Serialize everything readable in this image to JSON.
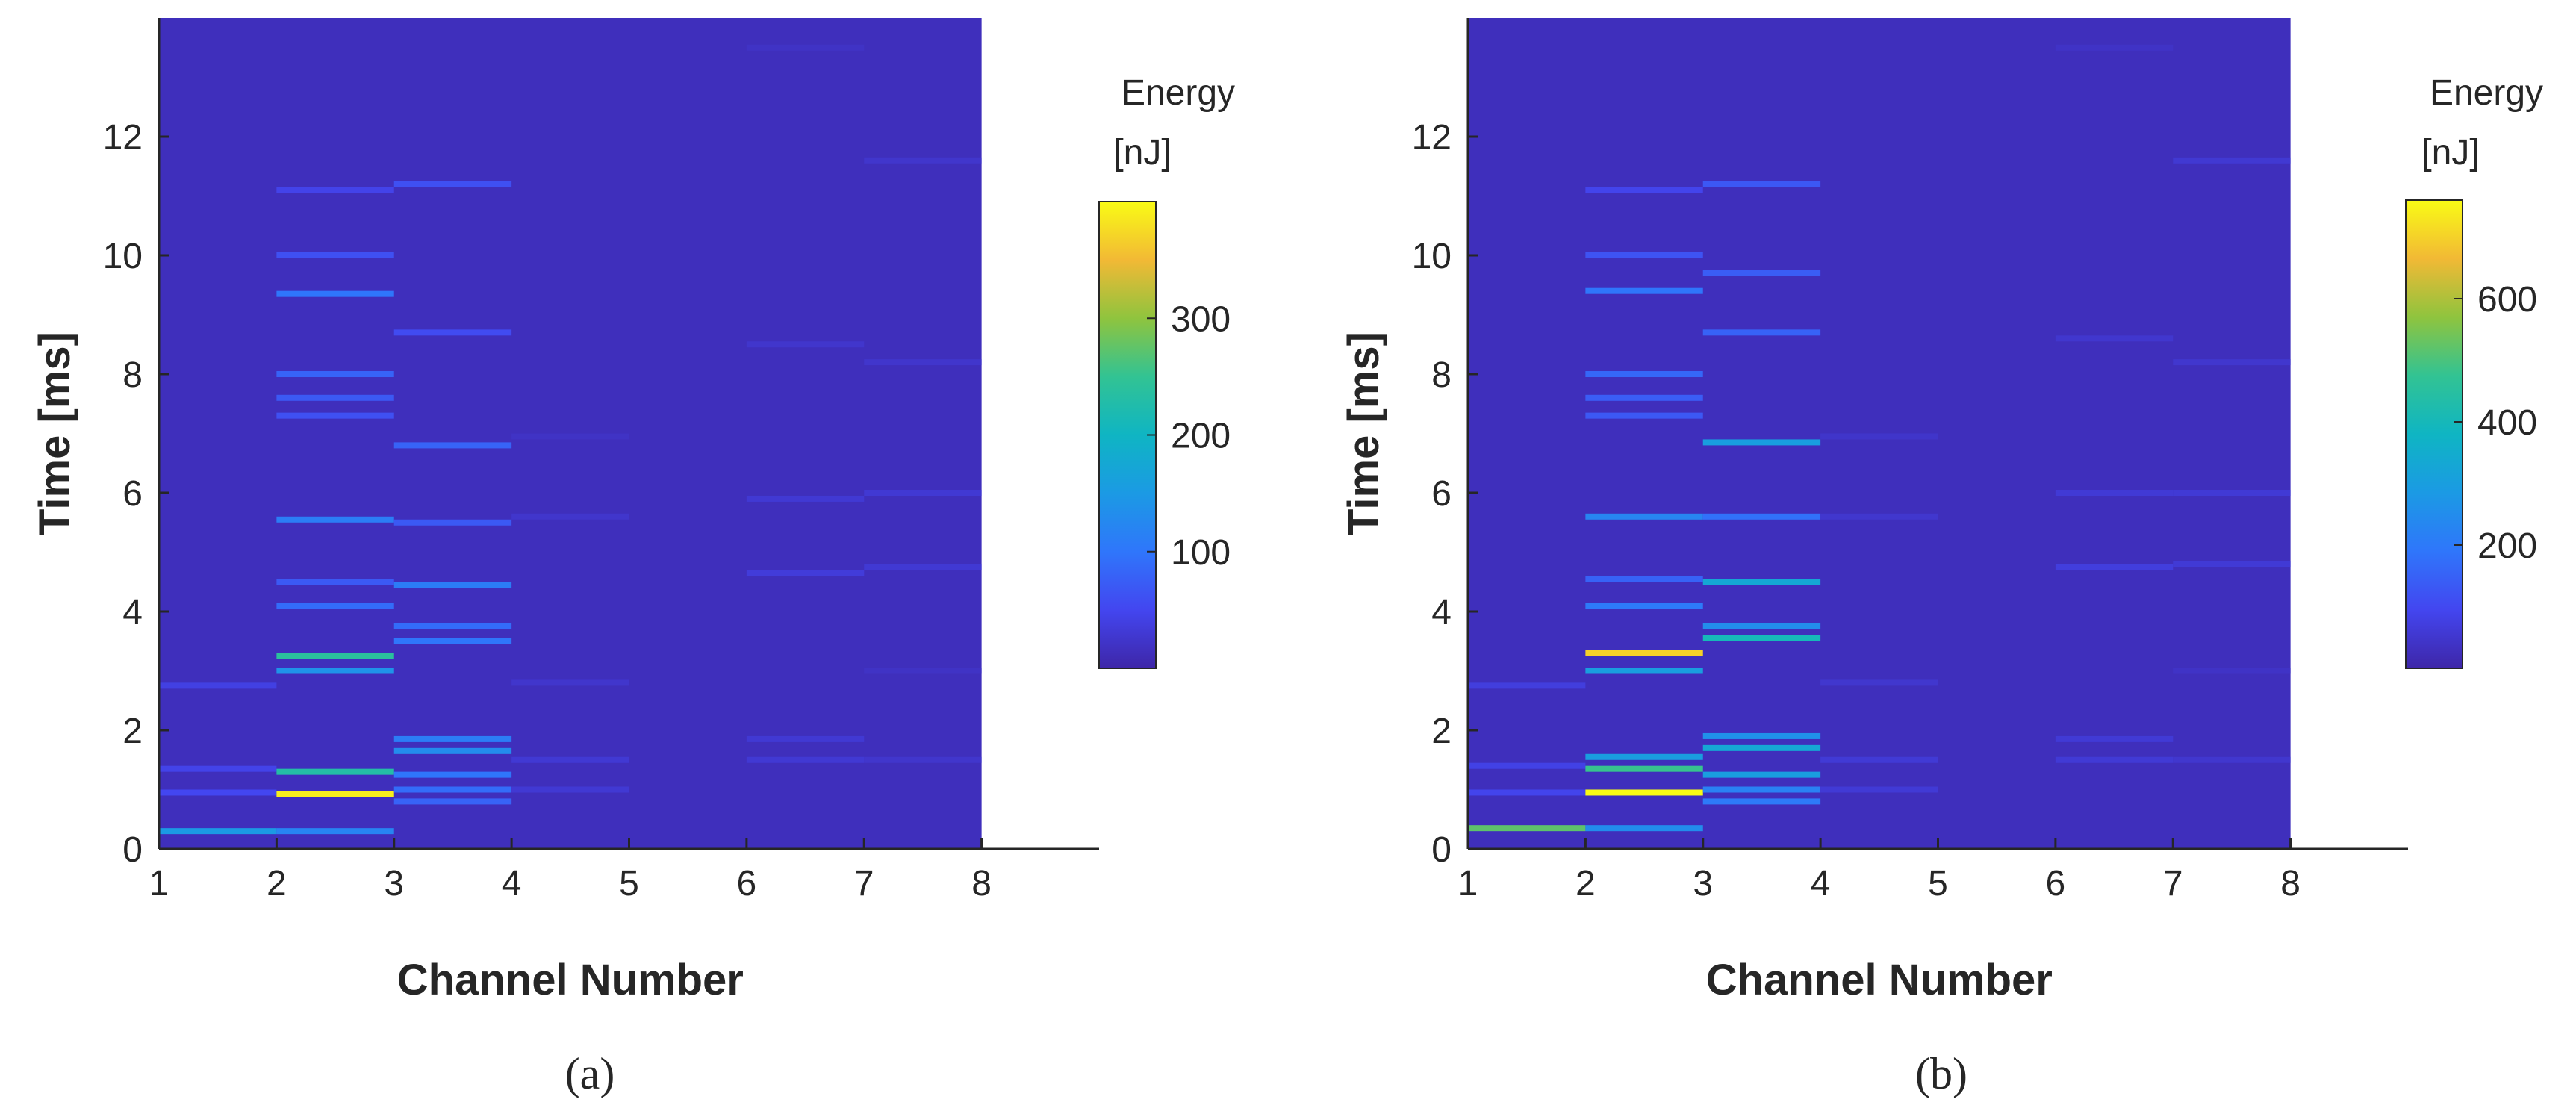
{
  "chart_data": [
    {
      "type": "heatmap",
      "panel_label": "(a)",
      "xlabel": "Channel Number",
      "ylabel": "Time [ms]",
      "xlim": [
        1,
        9
      ],
      "ylim": [
        0,
        14
      ],
      "xticks": [
        1,
        2,
        3,
        4,
        5,
        6,
        7,
        8
      ],
      "yticks": [
        0,
        2,
        4,
        6,
        8,
        10,
        12
      ],
      "colorbar": {
        "title_line1": "Energy",
        "title_line2": "[nJ]",
        "range": [
          0,
          400
        ],
        "ticks": [
          100,
          200,
          300
        ]
      },
      "channels": [
        {
          "channel": 1,
          "bands": [
            {
              "t": 0.3,
              "v": 150
            },
            {
              "t": 0.95,
              "v": 50
            },
            {
              "t": 1.35,
              "v": 45
            },
            {
              "t": 2.75,
              "v": 40
            }
          ]
        },
        {
          "channel": 2,
          "bands": [
            {
              "t": 0.3,
              "v": 120
            },
            {
              "t": 0.92,
              "v": 390
            },
            {
              "t": 1.3,
              "v": 230
            },
            {
              "t": 3.0,
              "v": 140
            },
            {
              "t": 3.25,
              "v": 240
            },
            {
              "t": 4.1,
              "v": 90
            },
            {
              "t": 4.5,
              "v": 70
            },
            {
              "t": 5.55,
              "v": 110
            },
            {
              "t": 7.3,
              "v": 60
            },
            {
              "t": 7.6,
              "v": 70
            },
            {
              "t": 8.0,
              "v": 80
            },
            {
              "t": 9.35,
              "v": 100
            },
            {
              "t": 10.0,
              "v": 60
            },
            {
              "t": 11.1,
              "v": 45
            }
          ]
        },
        {
          "channel": 3,
          "bands": [
            {
              "t": 0.8,
              "v": 80
            },
            {
              "t": 1.0,
              "v": 90
            },
            {
              "t": 1.25,
              "v": 100
            },
            {
              "t": 1.65,
              "v": 130
            },
            {
              "t": 1.85,
              "v": 110
            },
            {
              "t": 3.5,
              "v": 100
            },
            {
              "t": 3.75,
              "v": 90
            },
            {
              "t": 4.45,
              "v": 110
            },
            {
              "t": 5.5,
              "v": 70
            },
            {
              "t": 6.8,
              "v": 80
            },
            {
              "t": 8.7,
              "v": 55
            },
            {
              "t": 11.2,
              "v": 60
            }
          ]
        },
        {
          "channel": 4,
          "bands": [
            {
              "t": 1.0,
              "v": 30
            },
            {
              "t": 1.5,
              "v": 30
            },
            {
              "t": 2.8,
              "v": 25
            },
            {
              "t": 5.6,
              "v": 25
            },
            {
              "t": 6.95,
              "v": 20
            }
          ]
        },
        {
          "channel": 5,
          "bands": []
        },
        {
          "channel": 6,
          "bands": [
            {
              "t": 1.5,
              "v": 30
            },
            {
              "t": 1.85,
              "v": 30
            },
            {
              "t": 4.65,
              "v": 35
            },
            {
              "t": 5.9,
              "v": 30
            },
            {
              "t": 8.5,
              "v": 25
            },
            {
              "t": 13.5,
              "v": 20
            }
          ]
        },
        {
          "channel": 7,
          "bands": [
            {
              "t": 1.5,
              "v": 25
            },
            {
              "t": 3.0,
              "v": 20
            },
            {
              "t": 4.75,
              "v": 30
            },
            {
              "t": 6.0,
              "v": 30
            },
            {
              "t": 8.2,
              "v": 25
            },
            {
              "t": 11.6,
              "v": 25
            }
          ]
        }
      ]
    },
    {
      "type": "heatmap",
      "panel_label": "(b)",
      "xlabel": "Channel Number",
      "ylabel": "Time [ms]",
      "xlim": [
        1,
        9
      ],
      "ylim": [
        0,
        14
      ],
      "xticks": [
        1,
        2,
        3,
        4,
        5,
        6,
        7,
        8
      ],
      "yticks": [
        0,
        2,
        4,
        6,
        8,
        10,
        12
      ],
      "colorbar": {
        "title_line1": "Energy",
        "title_line2": "[nJ]",
        "range": [
          0,
          760
        ],
        "ticks": [
          200,
          400,
          600
        ]
      },
      "channels": [
        {
          "channel": 1,
          "bands": [
            {
              "t": 0.35,
              "v": 520
            },
            {
              "t": 0.95,
              "v": 90
            },
            {
              "t": 1.4,
              "v": 80
            },
            {
              "t": 2.75,
              "v": 70
            }
          ]
        },
        {
          "channel": 2,
          "bands": [
            {
              "t": 0.35,
              "v": 250
            },
            {
              "t": 0.95,
              "v": 760
            },
            {
              "t": 1.35,
              "v": 480
            },
            {
              "t": 1.55,
              "v": 300
            },
            {
              "t": 3.0,
              "v": 300
            },
            {
              "t": 3.3,
              "v": 700
            },
            {
              "t": 4.1,
              "v": 200
            },
            {
              "t": 4.55,
              "v": 150
            },
            {
              "t": 5.6,
              "v": 230
            },
            {
              "t": 7.3,
              "v": 130
            },
            {
              "t": 7.6,
              "v": 140
            },
            {
              "t": 8.0,
              "v": 160
            },
            {
              "t": 9.4,
              "v": 190
            },
            {
              "t": 10.0,
              "v": 120
            },
            {
              "t": 11.1,
              "v": 90
            }
          ]
        },
        {
          "channel": 3,
          "bands": [
            {
              "t": 0.8,
              "v": 200
            },
            {
              "t": 1.0,
              "v": 220
            },
            {
              "t": 1.25,
              "v": 300
            },
            {
              "t": 1.7,
              "v": 330
            },
            {
              "t": 1.9,
              "v": 260
            },
            {
              "t": 3.55,
              "v": 400
            },
            {
              "t": 3.75,
              "v": 250
            },
            {
              "t": 4.5,
              "v": 330
            },
            {
              "t": 5.6,
              "v": 180
            },
            {
              "t": 6.85,
              "v": 300
            },
            {
              "t": 8.7,
              "v": 150
            },
            {
              "t": 9.7,
              "v": 140
            },
            {
              "t": 11.2,
              "v": 130
            }
          ]
        },
        {
          "channel": 4,
          "bands": [
            {
              "t": 1.0,
              "v": 60
            },
            {
              "t": 1.5,
              "v": 60
            },
            {
              "t": 2.8,
              "v": 50
            },
            {
              "t": 5.6,
              "v": 50
            },
            {
              "t": 6.95,
              "v": 45
            }
          ]
        },
        {
          "channel": 5,
          "bands": []
        },
        {
          "channel": 6,
          "bands": [
            {
              "t": 1.5,
              "v": 60
            },
            {
              "t": 1.85,
              "v": 60
            },
            {
              "t": 4.75,
              "v": 70
            },
            {
              "t": 6.0,
              "v": 60
            },
            {
              "t": 8.6,
              "v": 50
            },
            {
              "t": 13.5,
              "v": 40
            }
          ]
        },
        {
          "channel": 7,
          "bands": [
            {
              "t": 1.5,
              "v": 50
            },
            {
              "t": 3.0,
              "v": 40
            },
            {
              "t": 4.8,
              "v": 60
            },
            {
              "t": 6.0,
              "v": 60
            },
            {
              "t": 8.2,
              "v": 50
            },
            {
              "t": 11.6,
              "v": 55
            }
          ]
        }
      ]
    }
  ]
}
